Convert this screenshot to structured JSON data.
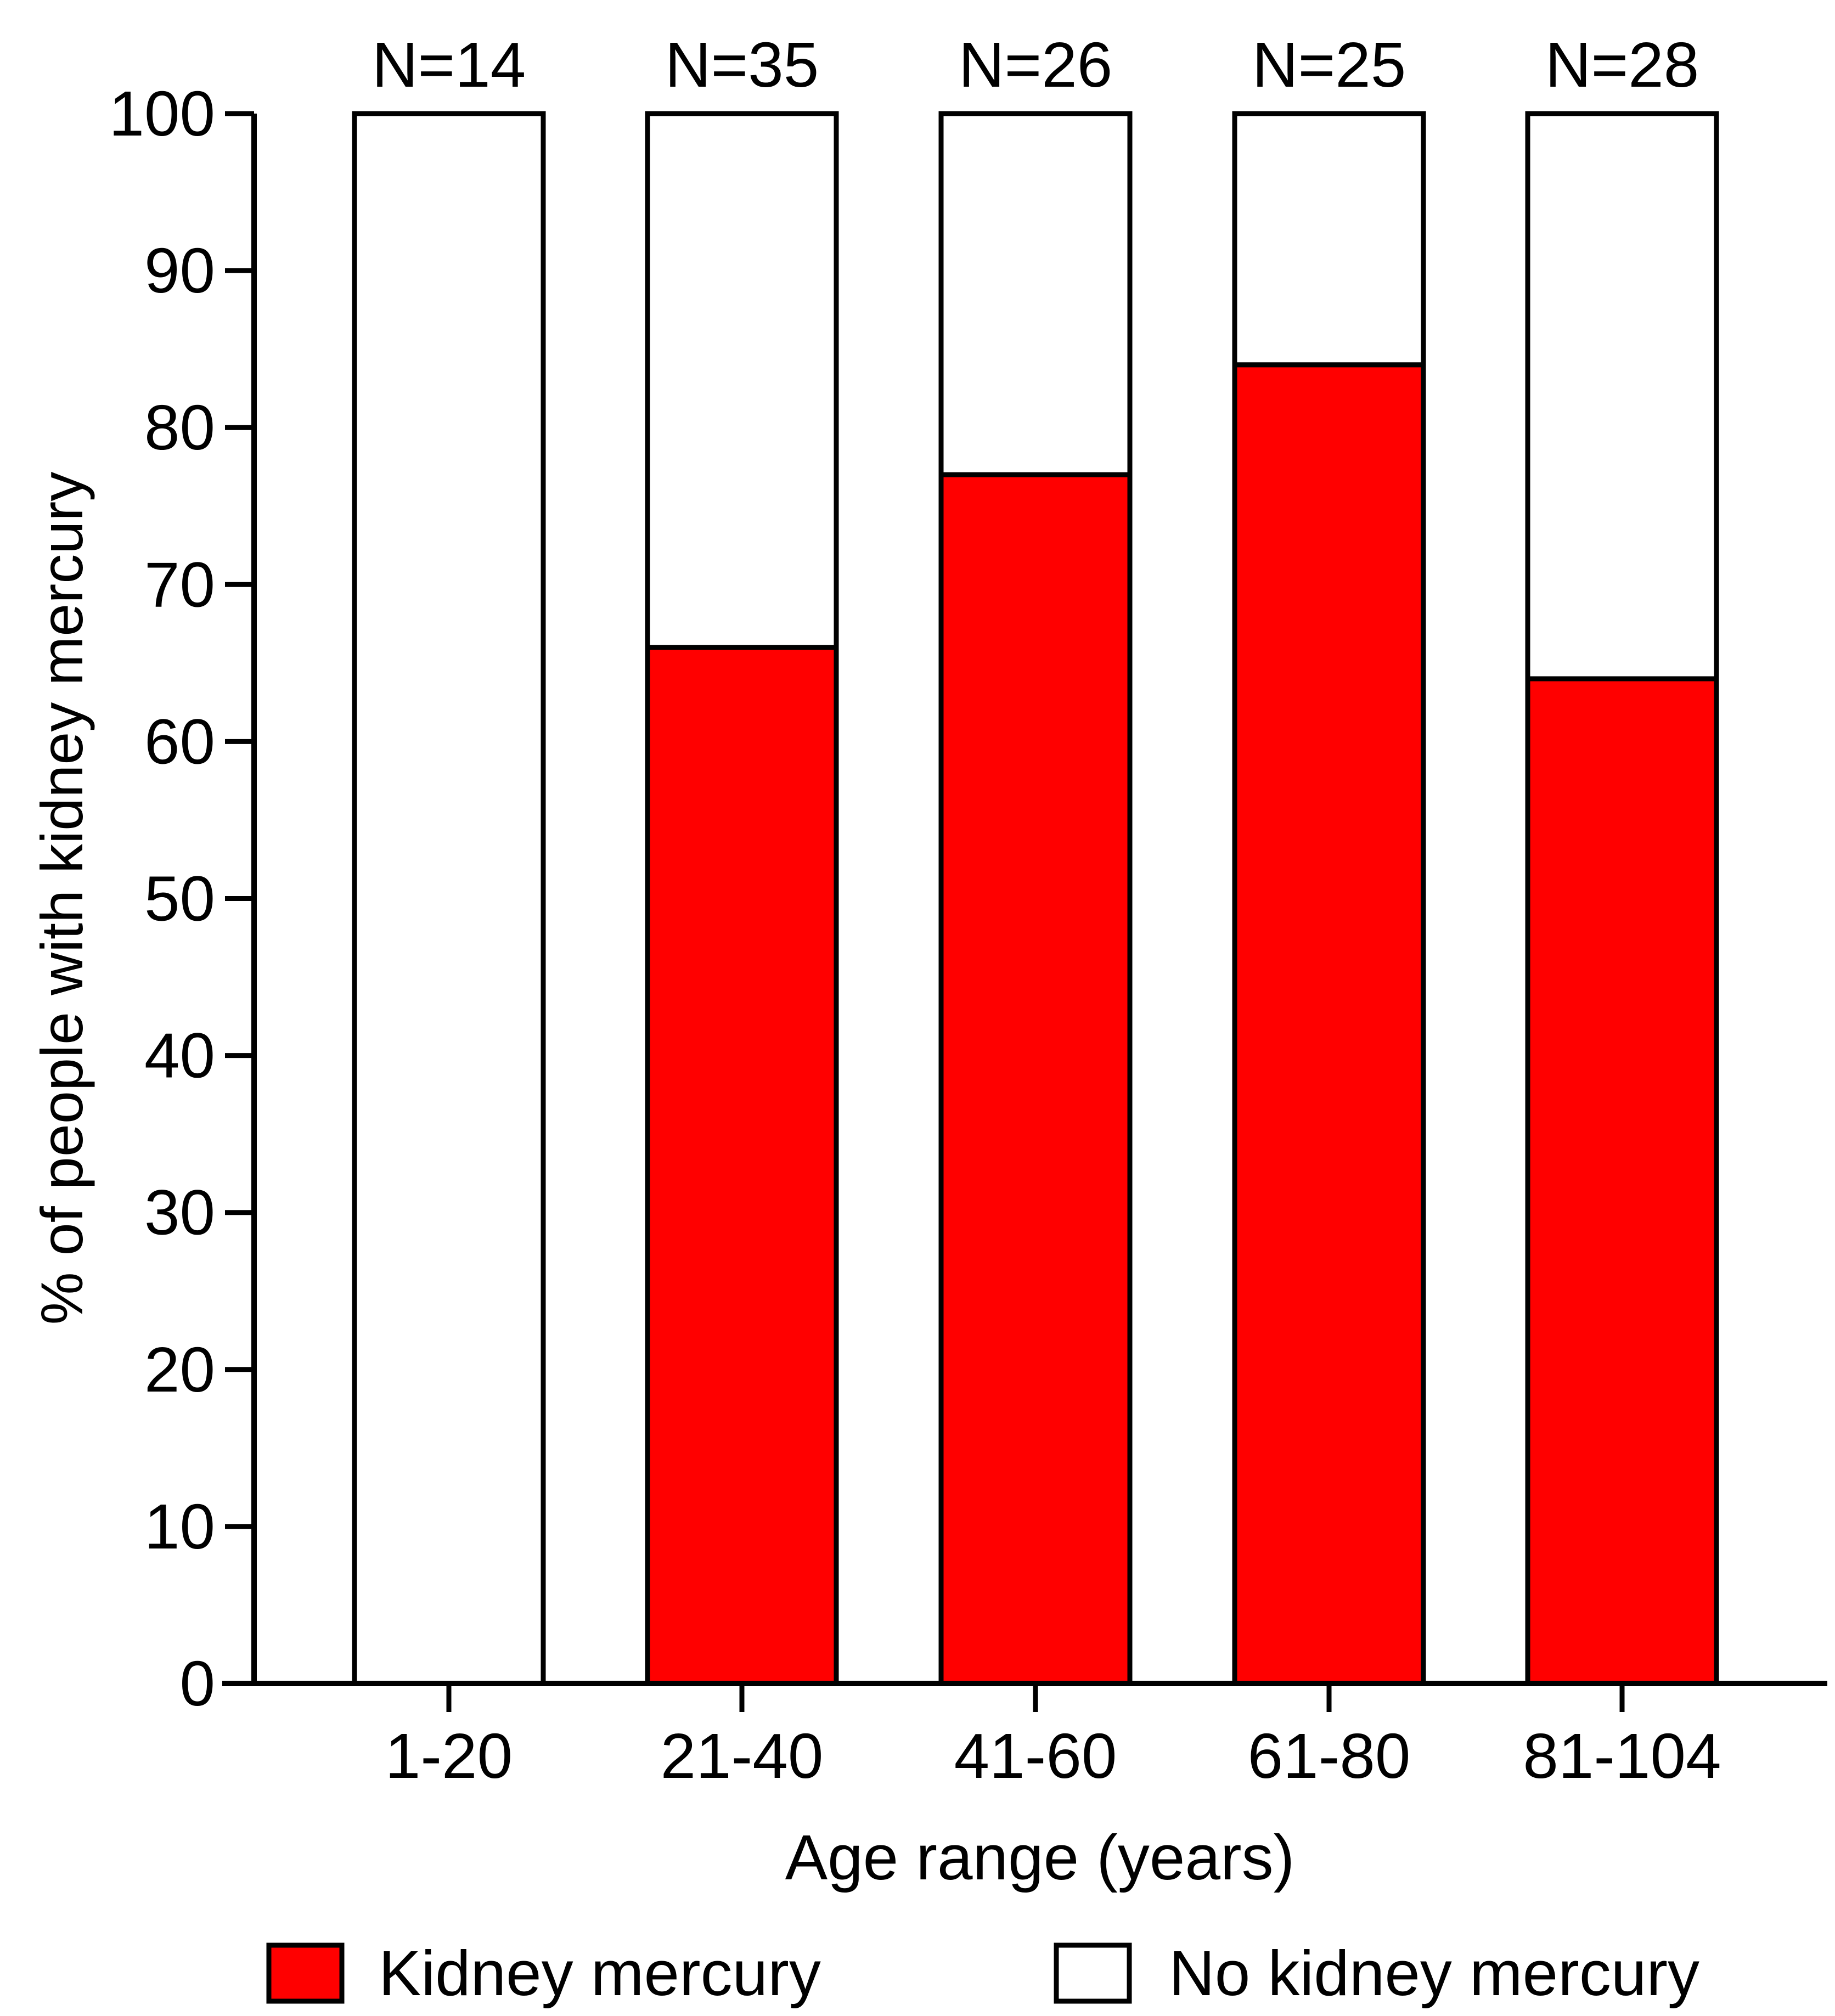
{
  "chart_data": {
    "type": "bar",
    "stacked": true,
    "categories": [
      "1-20",
      "21-40",
      "41-60",
      "61-80",
      "81-104"
    ],
    "n_labels": [
      "N=14",
      "N=35",
      "N=26",
      "N=25",
      "N=28"
    ],
    "series": [
      {
        "name": "Kidney mercury",
        "color": "#ff0000",
        "values": [
          0,
          66,
          77,
          84,
          64
        ]
      },
      {
        "name": "No kidney mercury",
        "color": "#ffffff",
        "values": [
          100,
          34,
          23,
          16,
          36
        ]
      }
    ],
    "xlabel": "Age range (years)",
    "ylabel": "% of people with kidney mercury",
    "ylim": [
      0,
      100
    ],
    "yticks": [
      0,
      10,
      20,
      30,
      40,
      50,
      60,
      70,
      80,
      90,
      100
    ],
    "grid": false,
    "legend_position": "bottom"
  }
}
